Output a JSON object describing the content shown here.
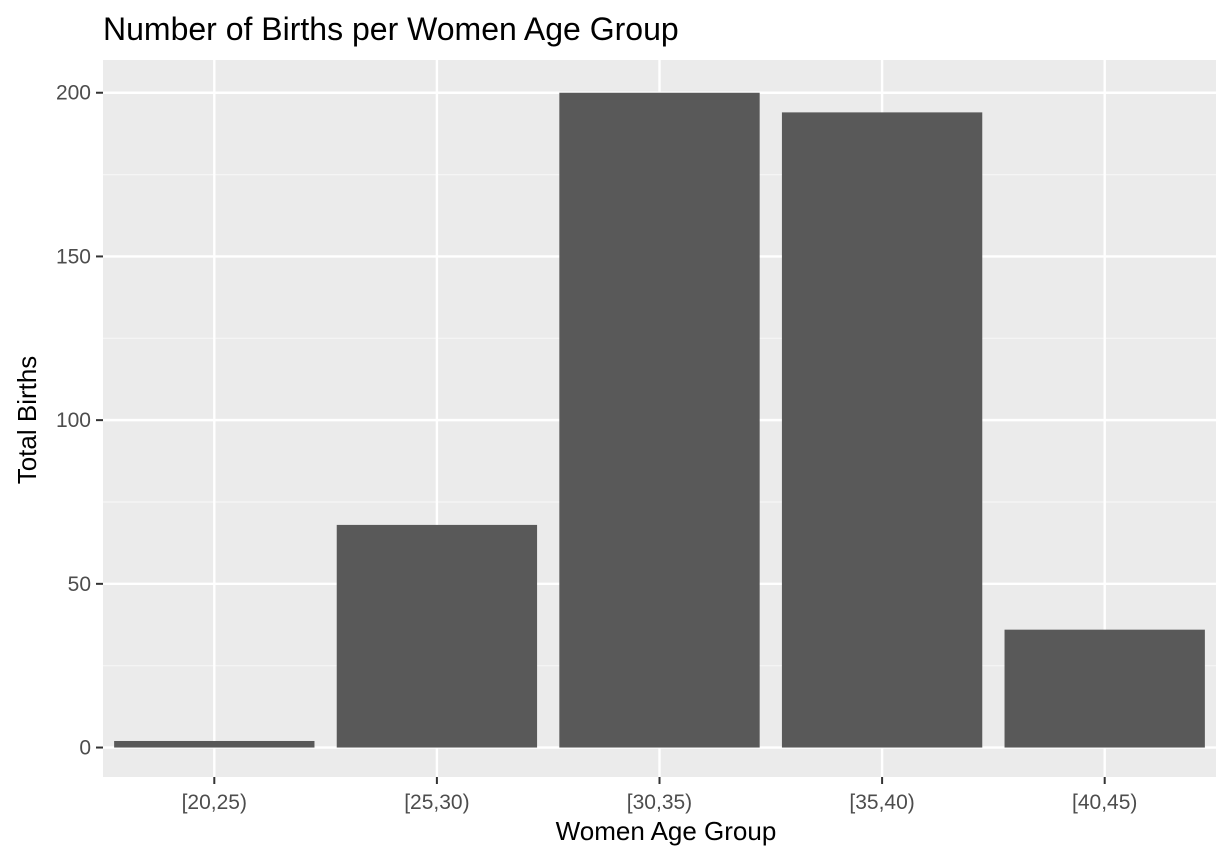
{
  "chart_data": {
    "type": "bar",
    "title": "Number of Births per Women Age Group",
    "xlabel": "Women Age Group",
    "ylabel": "Total Births",
    "categories": [
      "[20,25)",
      "[25,30)",
      "[30,35)",
      "[35,40)",
      "[40,45)"
    ],
    "values": [
      2,
      68,
      200,
      194,
      36
    ],
    "ylim": [
      -9,
      210
    ],
    "yticks": [
      0,
      50,
      100,
      150,
      200
    ],
    "ytick_labels": [
      "0",
      "50",
      "100",
      "150",
      "200"
    ],
    "grid": true,
    "legend": "none",
    "colors": {
      "bar": "#595959",
      "panel": "#ebebeb",
      "grid_major": "#ffffff",
      "grid_minor": "#f5f5f5",
      "tick": "#333333"
    }
  }
}
